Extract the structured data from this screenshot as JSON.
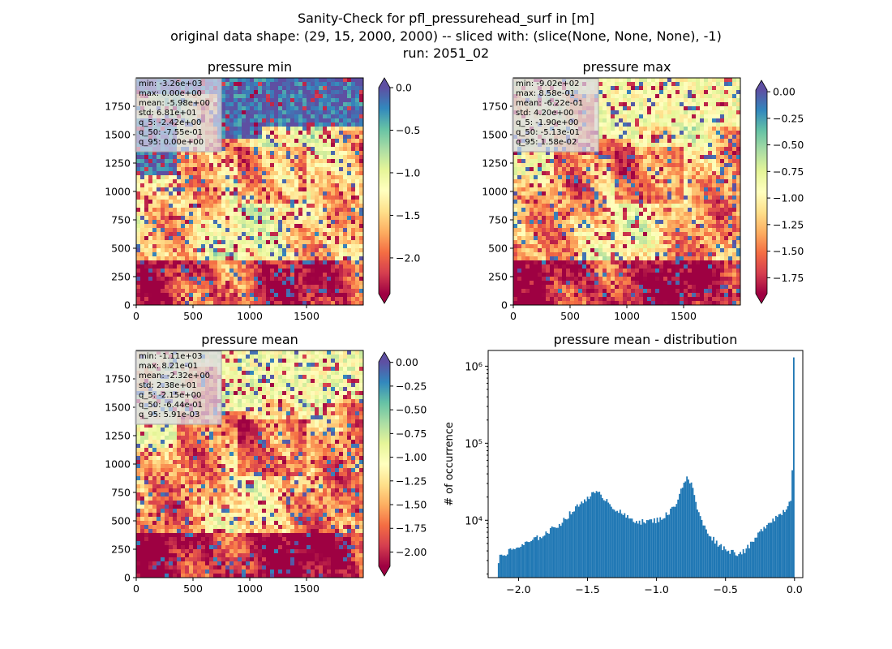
{
  "figure": {
    "title_lines": [
      "Sanity-Check for pfl_pressurehead_surf in [m]",
      "original data shape: (29, 15, 2000, 2000) -- sliced with: (slice(None, None, None), -1)",
      "run: 2051_02"
    ]
  },
  "colors": {
    "colormap": "Spectral",
    "histogram_bar": "#1f77b4",
    "stats_box_bg": "#d8d8e8"
  },
  "chart_data": [
    {
      "type": "heatmap",
      "title": "pressure min",
      "xlim": [
        0,
        2000
      ],
      "ylim": [
        0,
        2000
      ],
      "x_ticks": [
        0,
        500,
        1000,
        1500
      ],
      "y_ticks": [
        0,
        250,
        500,
        750,
        1000,
        1250,
        1500,
        1750
      ],
      "colorbar": {
        "colormap": "Spectral",
        "range": [
          -2.42,
          0.0
        ],
        "ticks": [
          0.0,
          -0.5,
          -1.0,
          -1.5,
          -2.0
        ],
        "tick_labels": [
          "0.0",
          "−0.5",
          "−1.0",
          "−1.5",
          "−2.0"
        ],
        "extend": "both"
      },
      "stats": [
        "min: -3.26e+03",
        "max: 0.00e+00",
        "mean: -5.98e+00",
        "std: 6.81e+01",
        "q_5: -2.42e+00",
        "q_50: -7.55e-01",
        "q_95: 0.00e+00"
      ]
    },
    {
      "type": "heatmap",
      "title": "pressure max",
      "xlim": [
        0,
        2000
      ],
      "ylim": [
        0,
        2000
      ],
      "x_ticks": [
        0,
        500,
        1000,
        1500
      ],
      "y_ticks": [
        0,
        250,
        500,
        750,
        1000,
        1250,
        1500,
        1750
      ],
      "colorbar": {
        "colormap": "Spectral",
        "range": [
          -1.9,
          0.0158
        ],
        "ticks": [
          0.0,
          -0.25,
          -0.5,
          -0.75,
          -1.0,
          -1.25,
          -1.5,
          -1.75
        ],
        "tick_labels": [
          "0.00",
          "−0.25",
          "−0.50",
          "−0.75",
          "−1.00",
          "−1.25",
          "−1.50",
          "−1.75"
        ],
        "extend": "both"
      },
      "stats": [
        "min: -9.02e+02",
        "max: 8.58e-01",
        "mean: -6.22e-01",
        "std: 4.20e+00",
        "q_5: -1.90e+00",
        "q_50: -5.13e-01",
        "q_95: 1.58e-02"
      ]
    },
    {
      "type": "heatmap",
      "title": "pressure mean",
      "xlim": [
        0,
        2000
      ],
      "ylim": [
        0,
        2000
      ],
      "x_ticks": [
        0,
        500,
        1000,
        1500
      ],
      "y_ticks": [
        0,
        250,
        500,
        750,
        1000,
        1250,
        1500,
        1750
      ],
      "colorbar": {
        "colormap": "Spectral",
        "range": [
          -2.15,
          0.00591
        ],
        "ticks": [
          0.0,
          -0.25,
          -0.5,
          -0.75,
          -1.0,
          -1.25,
          -1.5,
          -1.75,
          -2.0
        ],
        "tick_labels": [
          "0.00",
          "−0.25",
          "−0.50",
          "−0.75",
          "−1.00",
          "−1.25",
          "−1.50",
          "−1.75",
          "−2.00"
        ],
        "extend": "both"
      },
      "stats": [
        "min: -1.11e+03",
        "max: 8.21e-01",
        "mean: -2.32e+00",
        "std: 2.38e+01",
        "q_5: -2.15e+00",
        "q_50: -6.44e-01",
        "q_95: 5.91e-03"
      ]
    },
    {
      "type": "bar",
      "title": "pressure mean - distribution",
      "ylabel": "# of occurrence",
      "xlabel": "",
      "y_scale": "log",
      "xlim": [
        -2.22,
        0.06
      ],
      "ylim": [
        1800,
        1600000
      ],
      "x_ticks": [
        -2.0,
        -1.5,
        -1.0,
        -0.5,
        0.0
      ],
      "x_tick_labels": [
        "−2.0",
        "−1.5",
        "−1.0",
        "−0.5",
        "0.0"
      ],
      "y_ticks": [
        10000,
        100000,
        1000000
      ],
      "y_tick_labels": [
        "10⁴",
        "10⁵",
        "10⁶"
      ],
      "bin_range": [
        -2.15,
        0.0
      ],
      "bin_count": 200,
      "bin_width": 0.01075,
      "counts_profile_x": [
        -2.15,
        -2.14,
        -2.1,
        -2.0,
        -1.9,
        -1.8,
        -1.7,
        -1.6,
        -1.5,
        -1.45,
        -1.4,
        -1.35,
        -1.3,
        -1.2,
        -1.1,
        -1.0,
        -0.95,
        -0.9,
        -0.85,
        -0.8,
        -0.78,
        -0.75,
        -0.72,
        -0.7,
        -0.65,
        -0.6,
        -0.55,
        -0.5,
        -0.45,
        -0.4,
        -0.35,
        -0.3,
        -0.25,
        -0.2,
        -0.15,
        -0.1,
        -0.05,
        -0.02,
        0.0
      ],
      "counts_profile_y": [
        2600,
        3200,
        3700,
        4500,
        5400,
        6800,
        9000,
        13500,
        20000,
        22500,
        21500,
        17500,
        14000,
        10500,
        9500,
        10000,
        11000,
        13000,
        18000,
        32000,
        35000,
        30000,
        20000,
        13000,
        8000,
        6000,
        4900,
        4200,
        3900,
        3700,
        4200,
        5200,
        7000,
        9000,
        10500,
        12000,
        15000,
        21000,
        1300000
      ]
    }
  ]
}
